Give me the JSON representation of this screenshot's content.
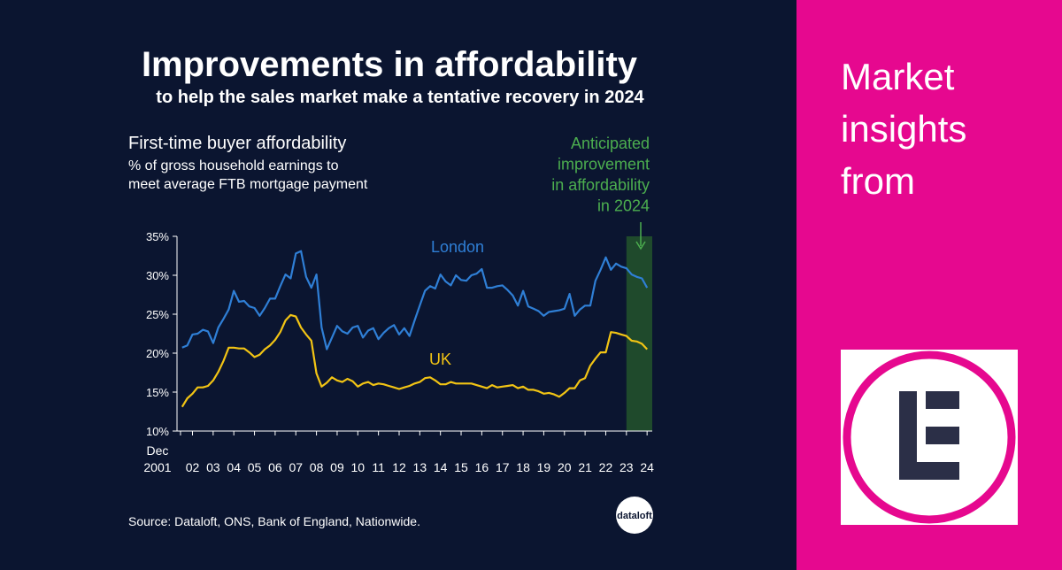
{
  "header": {
    "title": "Improvements in affordability",
    "subtitle": "to help the sales market make a tentative recovery in 2024"
  },
  "chart_data": {
    "type": "line",
    "title": "First-time buyer affordability",
    "subtitle": [
      "% of gross household earnings to",
      "meet average FTB mortgage payment"
    ],
    "annotation": [
      "Anticipated",
      "improvement",
      "in affordability",
      "in 2024"
    ],
    "highlight_x": [
      2023.5,
      2024.75
    ],
    "highlight_color": "#1f4a2c",
    "x": [
      2002,
      2002.25,
      2002.5,
      2002.75,
      2003,
      2003.25,
      2003.5,
      2003.75,
      2004,
      2004.25,
      2004.5,
      2004.75,
      2005,
      2005.25,
      2005.5,
      2005.75,
      2006,
      2006.25,
      2006.5,
      2006.75,
      2007,
      2007.25,
      2007.5,
      2007.75,
      2008,
      2008.25,
      2008.5,
      2008.75,
      2009,
      2009.25,
      2009.5,
      2009.75,
      2010,
      2010.25,
      2010.5,
      2010.75,
      2011,
      2011.25,
      2011.5,
      2011.75,
      2012,
      2012.25,
      2012.5,
      2012.75,
      2013,
      2013.25,
      2013.5,
      2013.75,
      2014,
      2014.25,
      2014.5,
      2014.75,
      2015,
      2015.25,
      2015.5,
      2015.75,
      2016,
      2016.25,
      2016.5,
      2016.75,
      2017,
      2017.25,
      2017.5,
      2017.75,
      2018,
      2018.25,
      2018.5,
      2018.75,
      2019,
      2019.25,
      2019.5,
      2019.75,
      2020,
      2020.25,
      2020.5,
      2020.75,
      2021,
      2021.25,
      2021.5,
      2021.75,
      2022,
      2022.25,
      2022.5,
      2022.75,
      2023,
      2023.25,
      2023.5,
      2023.75,
      2024,
      2024.25,
      2024.5
    ],
    "series": [
      {
        "name": "London",
        "color": "#2f7fd6",
        "values": [
          20.7,
          21,
          22.4,
          22.5,
          23,
          22.8,
          21.3,
          23.3,
          24.4,
          25.6,
          28,
          26.6,
          26.7,
          26,
          25.8,
          24.8,
          25.8,
          27,
          27,
          28.6,
          30.1,
          29.6,
          32.8,
          33.1,
          29.8,
          28.4,
          30.1,
          23.3,
          20.5,
          22,
          23.5,
          22.8,
          22.5,
          23.3,
          23.5,
          22,
          22.9,
          23.2,
          21.8,
          22.6,
          23.2,
          23.6,
          22.4,
          23.2,
          22.2,
          24.2,
          26.1,
          28,
          28.6,
          28.3,
          30.1,
          29.2,
          28.7,
          30,
          29.4,
          29.3,
          30,
          30.2,
          30.8,
          28.4,
          28.4,
          28.6,
          28.7,
          28.1,
          27.4,
          26.1,
          28,
          26,
          25.7,
          25.4,
          24.8,
          25.3,
          25.4,
          25.5,
          25.7,
          27.6,
          24.8,
          25.6,
          26.1,
          26.1,
          29.3,
          30.7,
          32.3,
          30.7,
          31.5,
          31.1,
          30.9,
          30.1,
          29.8,
          29.6,
          28.4
        ]
      },
      {
        "name": "UK",
        "color": "#f2c414",
        "values": [
          13.1,
          14.2,
          14.8,
          15.6,
          15.6,
          15.8,
          16.5,
          17.6,
          19,
          20.7,
          20.7,
          20.6,
          20.6,
          20.1,
          19.5,
          19.8,
          20.5,
          21,
          21.7,
          22.7,
          24.2,
          24.9,
          24.7,
          23.3,
          22.4,
          21.6,
          17.4,
          15.7,
          16.2,
          16.9,
          16.5,
          16.3,
          16.7,
          16.4,
          15.7,
          16.1,
          16.3,
          15.9,
          16.1,
          16,
          15.8,
          15.6,
          15.4,
          15.6,
          15.8,
          16.1,
          16.3,
          16.8,
          16.9,
          16.5,
          16,
          16,
          16.3,
          16.1,
          16.1,
          16.1,
          16.1,
          15.9,
          15.7,
          15.5,
          15.9,
          15.6,
          15.7,
          15.8,
          15.9,
          15.5,
          15.7,
          15.3,
          15.3,
          15.1,
          14.8,
          14.9,
          14.7,
          14.4,
          14.9,
          15.5,
          15.5,
          16.5,
          16.8,
          18.4,
          19.3,
          20.1,
          20.1,
          22.7,
          22.6,
          22.4,
          22.2,
          21.6,
          21.5,
          21.2,
          20.5
        ]
      }
    ],
    "xlim": [
      2001.75,
      2024.75
    ],
    "xticks": [
      {
        "value": 2001.92,
        "label": "Dec 2001"
      },
      {
        "value": 2002.5,
        "label": "02"
      },
      {
        "value": 2003.5,
        "label": "03"
      },
      {
        "value": 2004.5,
        "label": "04"
      },
      {
        "value": 2005.5,
        "label": "05"
      },
      {
        "value": 2006.5,
        "label": "06"
      },
      {
        "value": 2007.5,
        "label": "07"
      },
      {
        "value": 2008.5,
        "label": "08"
      },
      {
        "value": 2009.5,
        "label": "09"
      },
      {
        "value": 2010.5,
        "label": "10"
      },
      {
        "value": 2011.5,
        "label": "11"
      },
      {
        "value": 2012.5,
        "label": "12"
      },
      {
        "value": 2013.5,
        "label": "13"
      },
      {
        "value": 2014.5,
        "label": "14"
      },
      {
        "value": 2015.5,
        "label": "15"
      },
      {
        "value": 2016.5,
        "label": "16"
      },
      {
        "value": 2017.5,
        "label": "17"
      },
      {
        "value": 2018.5,
        "label": "18"
      },
      {
        "value": 2019.5,
        "label": "19"
      },
      {
        "value": 2020.5,
        "label": "20"
      },
      {
        "value": 2021.5,
        "label": "21"
      },
      {
        "value": 2022.5,
        "label": "22"
      },
      {
        "value": 2023.5,
        "label": "23"
      },
      {
        "value": 2024.5,
        "label": "24"
      }
    ],
    "ylim": [
      10,
      35
    ],
    "yticks": [
      {
        "value": 10,
        "label": "10%"
      },
      {
        "value": 15,
        "label": "15%"
      },
      {
        "value": 20,
        "label": "20%"
      },
      {
        "value": 25,
        "label": "25%"
      },
      {
        "value": 30,
        "label": "30%"
      },
      {
        "value": 35,
        "label": "35%"
      }
    ],
    "source": "Source: Dataloft, ONS, Bank of England, Nationwide."
  },
  "logo": "dataloft",
  "side_panel": {
    "lines": [
      "Market",
      "insights",
      "from"
    ]
  }
}
